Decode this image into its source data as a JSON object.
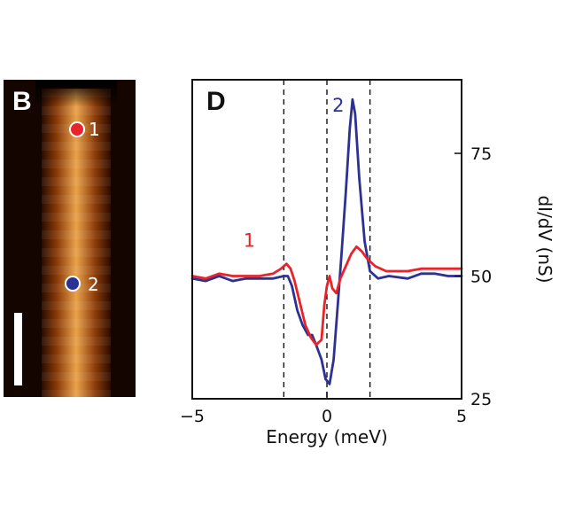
{
  "panel_b": {
    "letter": "B",
    "markers": [
      {
        "label": "1",
        "color": "#e8232b"
      },
      {
        "label": "2",
        "color": "#2c3192"
      }
    ]
  },
  "chart_data": {
    "type": "line",
    "panel_letter": "D",
    "xlabel": "Energy (meV)",
    "ylabel": "dI/dV (nS)",
    "xlim": [
      -5,
      5
    ],
    "ylim": [
      25,
      90
    ],
    "xticks": [
      -5,
      0,
      5
    ],
    "xtick_labels": [
      "−5",
      "0",
      "5"
    ],
    "yticks": [
      25,
      50,
      75
    ],
    "ytick_labels": [
      "25",
      "50",
      "75"
    ],
    "y_axis_side": "right",
    "grid": false,
    "vlines": [
      -1.6,
      0,
      1.6
    ],
    "series": [
      {
        "name": "1",
        "color": "#e8232b",
        "points": [
          [
            -5,
            50
          ],
          [
            -4.5,
            49.5
          ],
          [
            -4,
            50.5
          ],
          [
            -3.5,
            50
          ],
          [
            -3,
            50
          ],
          [
            -2.5,
            50
          ],
          [
            -2,
            50.5
          ],
          [
            -1.7,
            51.5
          ],
          [
            -1.5,
            52.5
          ],
          [
            -1.35,
            51.5
          ],
          [
            -1.2,
            49
          ],
          [
            -1.0,
            44.5
          ],
          [
            -0.8,
            40
          ],
          [
            -0.6,
            37.5
          ],
          [
            -0.4,
            36
          ],
          [
            -0.2,
            37
          ],
          [
            -0.1,
            44
          ],
          [
            0,
            48
          ],
          [
            0.1,
            50
          ],
          [
            0.2,
            47.5
          ],
          [
            0.35,
            46.5
          ],
          [
            0.5,
            49.5
          ],
          [
            0.7,
            52
          ],
          [
            0.9,
            54.5
          ],
          [
            1.1,
            56
          ],
          [
            1.3,
            55
          ],
          [
            1.5,
            53.5
          ],
          [
            1.8,
            52
          ],
          [
            2.2,
            51
          ],
          [
            3,
            51
          ],
          [
            3.5,
            51.5
          ],
          [
            4,
            51.5
          ],
          [
            4.5,
            51.5
          ],
          [
            5,
            51.5
          ]
        ]
      },
      {
        "name": "2",
        "color": "#2c3192",
        "points": [
          [
            -5,
            49.5
          ],
          [
            -4.5,
            49
          ],
          [
            -4,
            50
          ],
          [
            -3.5,
            49
          ],
          [
            -3,
            49.5
          ],
          [
            -2.5,
            49.5
          ],
          [
            -2,
            49.5
          ],
          [
            -1.6,
            50
          ],
          [
            -1.45,
            50
          ],
          [
            -1.3,
            48
          ],
          [
            -1.1,
            43
          ],
          [
            -0.9,
            40
          ],
          [
            -0.7,
            38
          ],
          [
            -0.55,
            38
          ],
          [
            -0.4,
            36
          ],
          [
            -0.2,
            33
          ],
          [
            -0.05,
            29
          ],
          [
            0.1,
            28
          ],
          [
            0.25,
            33
          ],
          [
            0.4,
            44
          ],
          [
            0.55,
            55
          ],
          [
            0.7,
            67
          ],
          [
            0.85,
            80
          ],
          [
            0.95,
            86
          ],
          [
            1.05,
            83
          ],
          [
            1.2,
            70
          ],
          [
            1.4,
            57
          ],
          [
            1.6,
            51
          ],
          [
            1.9,
            49.5
          ],
          [
            2.3,
            50
          ],
          [
            3,
            49.5
          ],
          [
            3.5,
            50.5
          ],
          [
            4,
            50.5
          ],
          [
            4.5,
            50
          ],
          [
            5,
            50
          ]
        ]
      }
    ],
    "annotations": [
      {
        "text": "1",
        "color": "#e8232b",
        "x": -3.1,
        "y": 56
      },
      {
        "text": "2",
        "color": "#2c3192",
        "x": 0.2,
        "y": 83.5
      }
    ]
  }
}
